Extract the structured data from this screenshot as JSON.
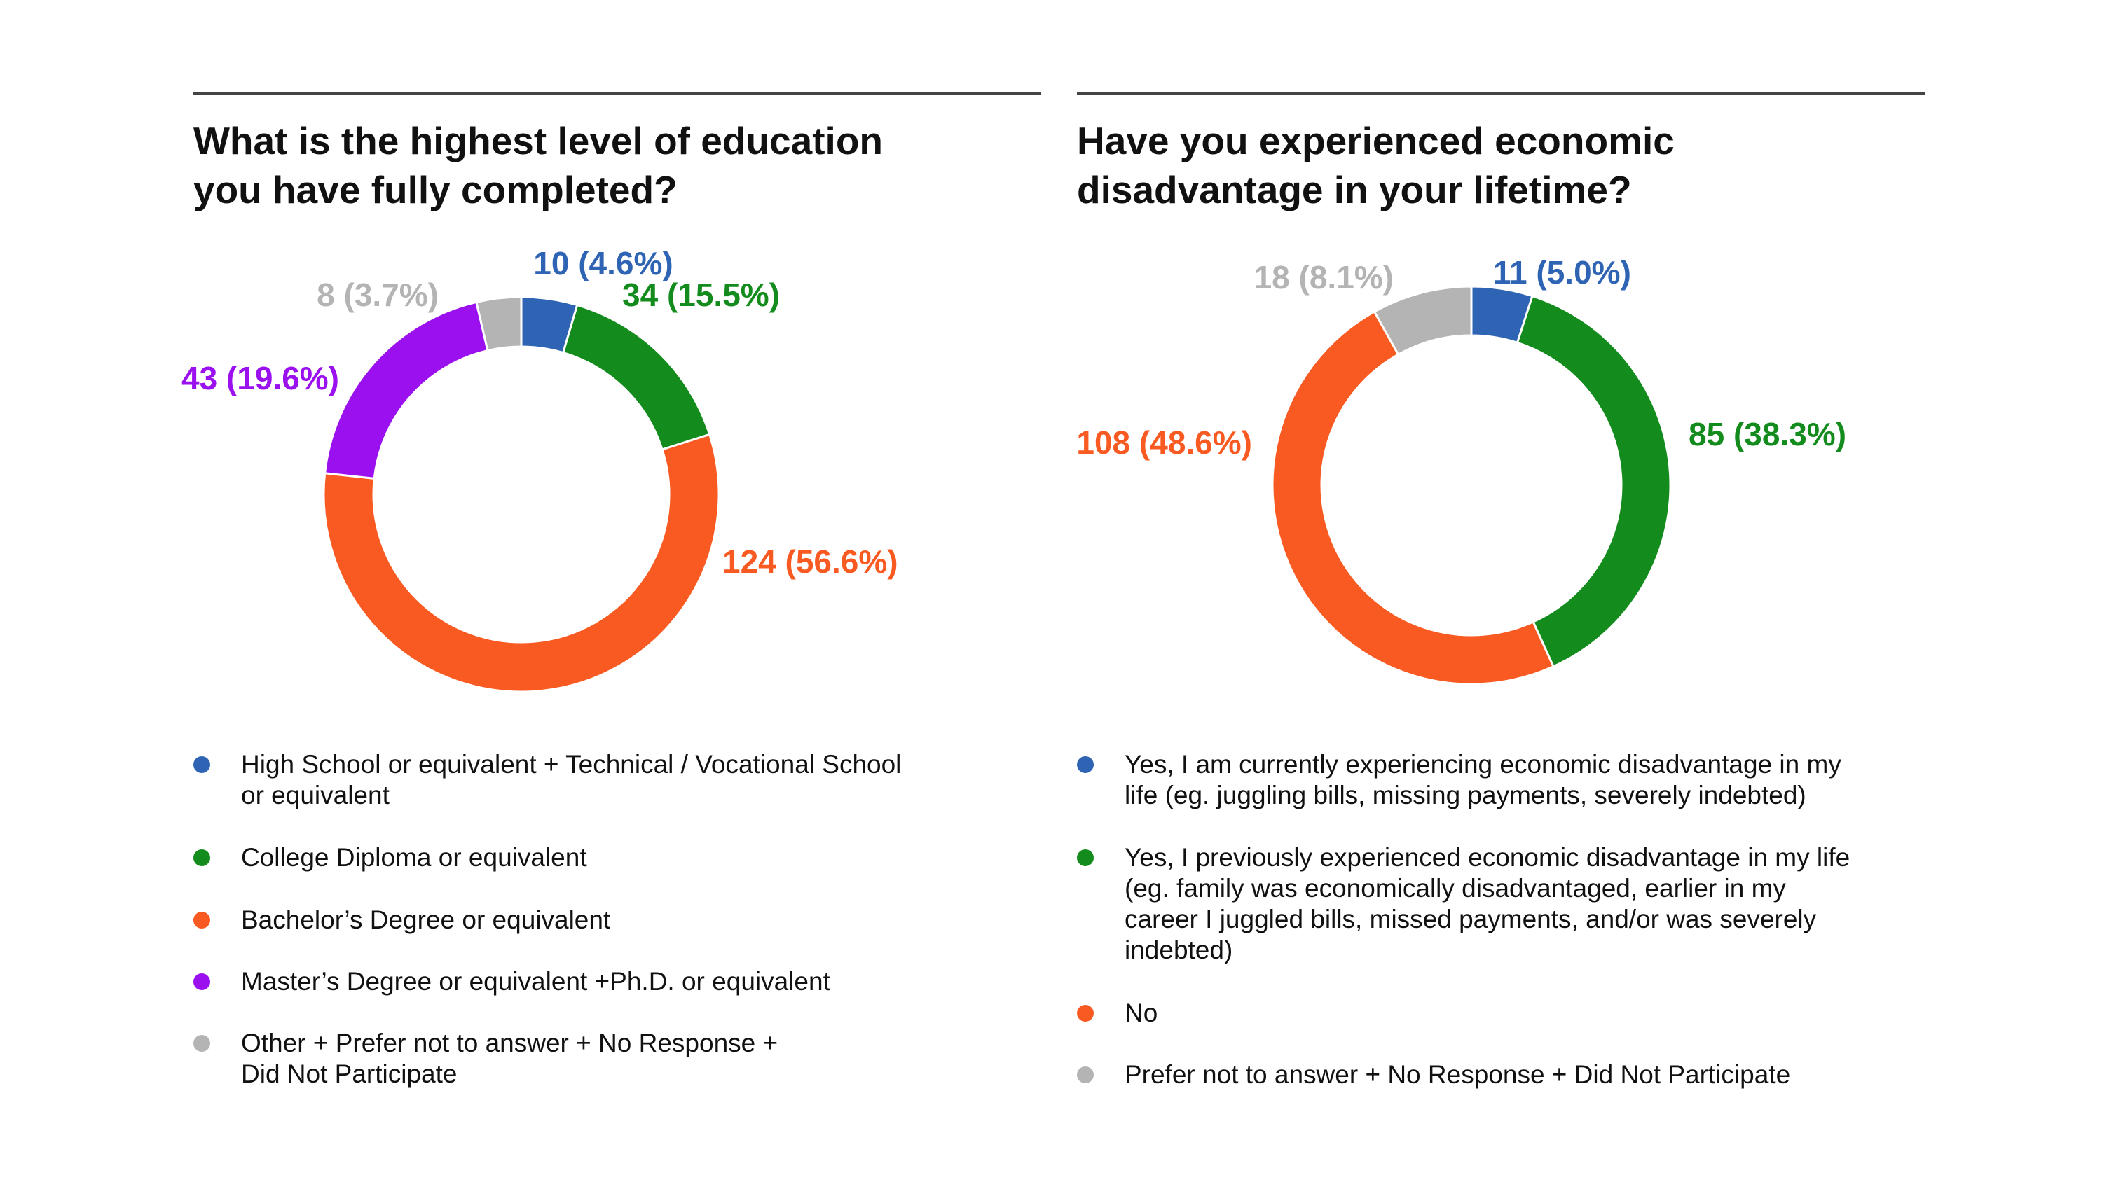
{
  "colors": {
    "blue": "#2f64b4",
    "green": "#138c1d",
    "orange": "#f95a22",
    "purple": "#9a10ee",
    "gray": "#b4b4b4"
  },
  "chart_data": [
    {
      "type": "pie",
      "title": "What is the highest level of education you have fully completed?",
      "title_lines": [
        "What is the highest level of education",
        "you have fully completed?"
      ],
      "style": "donut",
      "legend_position": "bottom",
      "slices": [
        {
          "label": "High School or equivalent + Technical / Vocational School or equivalent",
          "legend_lines": [
            "High School or equivalent + Technical / Vocational School",
            "or equivalent"
          ],
          "value": 10,
          "percent": 4.6,
          "display": "10 (4.6%)",
          "color": "#2f64b4"
        },
        {
          "label": "College Diploma or equivalent",
          "legend_lines": [
            "College Diploma or equivalent"
          ],
          "value": 34,
          "percent": 15.5,
          "display": "34 (15.5%)",
          "color": "#138c1d"
        },
        {
          "label": "Bachelor’s Degree or equivalent",
          "legend_lines": [
            "Bachelor’s Degree or equivalent"
          ],
          "value": 124,
          "percent": 56.6,
          "display": "124 (56.6%)",
          "color": "#f95a22"
        },
        {
          "label": "Master’s Degree or equivalent +Ph.D. or equivalent",
          "legend_lines": [
            "Master’s Degree or equivalent +Ph.D. or equivalent"
          ],
          "value": 43,
          "percent": 19.6,
          "display": "43 (19.6%)",
          "color": "#9a10ee"
        },
        {
          "label": "Other + Prefer not to answer + No Response + Did Not Participate",
          "legend_lines": [
            "Other + Prefer not to answer + No Response +",
            "Did Not Participate"
          ],
          "value": 8,
          "percent": 3.7,
          "display": "8 (3.7%)",
          "color": "#b4b4b4"
        }
      ]
    },
    {
      "type": "pie",
      "title": "Have you experienced economic disadvantage in your lifetime?",
      "title_lines": [
        "Have you experienced economic",
        "disadvantage in your lifetime?"
      ],
      "style": "donut",
      "legend_position": "bottom",
      "slices": [
        {
          "label": "Yes, I am currently experiencing economic disadvantage in my life (eg. juggling bills, missing payments, severely indebted)",
          "legend_lines": [
            "Yes, I am currently experiencing economic disadvantage in my",
            "life (eg. juggling bills, missing payments, severely indebted)"
          ],
          "value": 11,
          "percent": 5.0,
          "display": "11 (5.0%)",
          "color": "#2f64b4"
        },
        {
          "label": "Yes, I previously experienced economic disadvantage in my life (eg. family was economically disadvantaged, earlier in my career I juggled bills, missed payments, and/or was severely indebted)",
          "legend_lines": [
            "Yes, I previously experienced economic disadvantage in my life",
            "(eg. family was economically disadvantaged, earlier in my",
            "career I juggled bills, missed payments, and/or was severely",
            "indebted)"
          ],
          "value": 85,
          "percent": 38.3,
          "display": "85 (38.3%)",
          "color": "#138c1d"
        },
        {
          "label": "No",
          "legend_lines": [
            "No"
          ],
          "value": 108,
          "percent": 48.6,
          "display": "108 (48.6%)",
          "color": "#f95a22"
        },
        {
          "label": "Prefer not to answer + No Response + Did Not Participate",
          "legend_lines": [
            "Prefer not to answer + No Response + Did Not Participate"
          ],
          "value": 18,
          "percent": 8.1,
          "display": "18 (8.1%)",
          "color": "#b4b4b4"
        }
      ]
    }
  ]
}
